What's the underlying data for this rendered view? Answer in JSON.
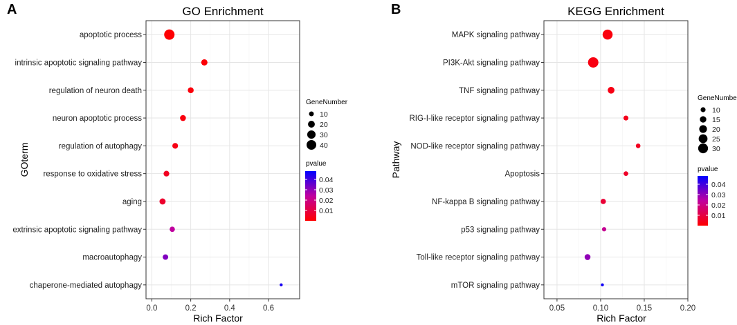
{
  "chart_data": [
    {
      "panel_label": "A",
      "type": "scatter",
      "title": "GO Enrichment",
      "xlabel": "Rich  Factor",
      "ylabel": "GOterm",
      "xlim": [
        -0.03,
        0.76
      ],
      "xticks": [
        0.0,
        0.2,
        0.4,
        0.6
      ],
      "xtick_labels": [
        "0.0",
        "0.2",
        "0.4",
        "0.6"
      ],
      "terms": [
        "apoptotic process",
        "intrinsic apoptotic signaling pathway",
        "regulation of neuron death",
        "neuron apoptotic process",
        "regulation of autophagy",
        "response to oxidative stress",
        "aging",
        "extrinsic apoptotic signaling pathway",
        "macroautophagy",
        "chaperone-mediated autophagy"
      ],
      "rich_factor": [
        0.09,
        0.27,
        0.2,
        0.16,
        0.12,
        0.075,
        0.055,
        0.105,
        0.07,
        0.665
      ],
      "gene_number": [
        46,
        17,
        15,
        15,
        14,
        14,
        16,
        12,
        13,
        4
      ],
      "pvalue": [
        0.0005,
        0.001,
        0.0015,
        0.002,
        0.003,
        0.005,
        0.007,
        0.024,
        0.032,
        0.045
      ],
      "size_legend": {
        "title": "GeneNumber",
        "values": [
          10,
          20,
          30,
          40
        ],
        "labels": [
          "10",
          "20",
          "30",
          "40"
        ]
      },
      "color_legend": {
        "title": "pvalue",
        "ticks": [
          0.04,
          0.03,
          0.02,
          0.01
        ],
        "labels": [
          "0.04",
          "0.03",
          "0.02",
          "0.01"
        ],
        "min": 0.0,
        "max": 0.048,
        "low_color": "#ff0000",
        "high_color": "#0000ff"
      },
      "size_range": [
        4,
        46
      ]
    },
    {
      "panel_label": "B",
      "type": "scatter",
      "title": "KEGG Enrichment",
      "xlabel": "Rich  Factor",
      "ylabel": "Pathway",
      "xlim": [
        0.035,
        0.2
      ],
      "xticks": [
        0.05,
        0.1,
        0.15,
        0.2
      ],
      "xtick_labels": [
        "0.05",
        "0.10",
        "0.15",
        "0.20"
      ],
      "terms": [
        "MAPK signaling pathway",
        "PI3K-Akt signaling pathway",
        "TNF signaling pathway",
        "RIG-I-like receptor signaling pathway",
        "NOD-like receptor signaling pathway",
        "Apoptosis",
        "NF-kappa B signaling pathway",
        "p53 signaling pathway",
        "Toll-like receptor signaling pathway",
        "mTOR signaling pathway"
      ],
      "rich_factor": [
        0.108,
        0.0915,
        0.112,
        0.129,
        0.143,
        0.129,
        0.103,
        0.104,
        0.085,
        0.102
      ],
      "gene_number": [
        31,
        33,
        16,
        10,
        9,
        9,
        11,
        8,
        13,
        5
      ],
      "pvalue": [
        0.002,
        0.0025,
        0.003,
        0.004,
        0.005,
        0.006,
        0.008,
        0.022,
        0.03,
        0.046
      ],
      "size_legend": {
        "title": "GeneNumber",
        "values": [
          10,
          15,
          20,
          25,
          30
        ],
        "labels": [
          "10",
          "15",
          "20",
          "25",
          "30"
        ]
      },
      "color_legend": {
        "title": "pvalue",
        "ticks": [
          0.04,
          0.03,
          0.02,
          0.01
        ],
        "labels": [
          "0.04",
          "0.03",
          "0.02",
          "0.01"
        ],
        "min": 0.0,
        "max": 0.048,
        "low_color": "#ff0000",
        "high_color": "#0000ff"
      },
      "size_range": [
        5,
        33
      ]
    }
  ]
}
